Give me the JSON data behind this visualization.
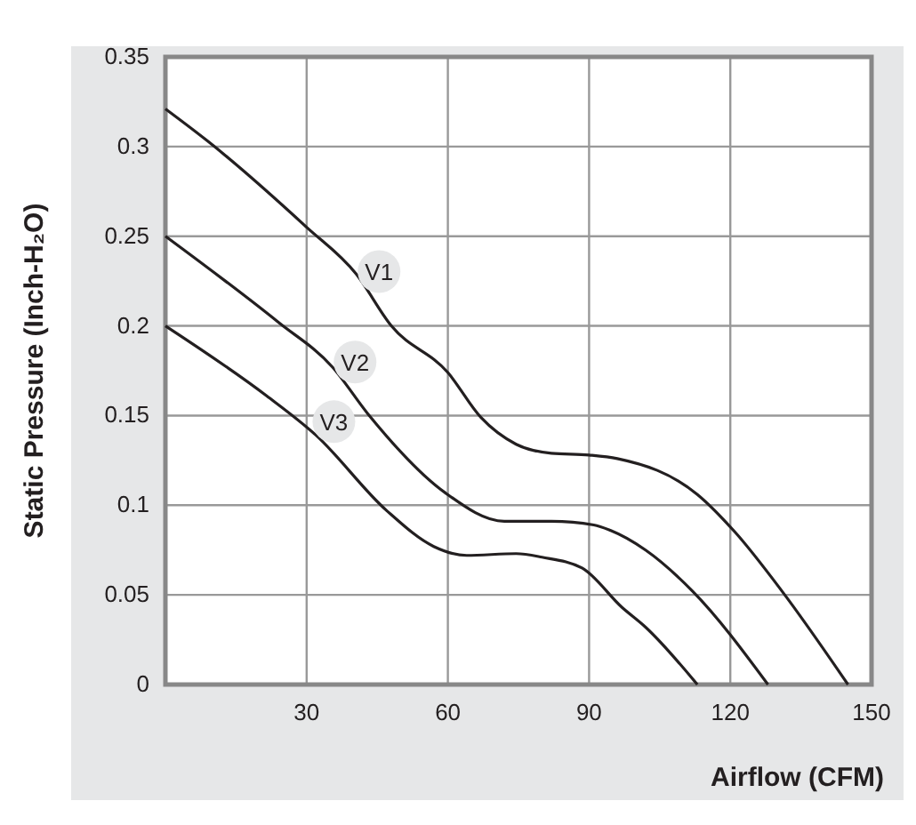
{
  "chart_data": {
    "type": "line",
    "xlabel": "Airflow (CFM)",
    "ylabel": "Static Pressure (Inch-H₂O)",
    "xlim": [
      0,
      150
    ],
    "ylim": [
      0,
      0.35
    ],
    "xticks": [
      30,
      60,
      90,
      120,
      150
    ],
    "yticks": [
      0,
      0.05,
      0.1,
      0.15,
      0.2,
      0.25,
      0.3,
      0.35
    ],
    "grid": true,
    "series": [
      {
        "name": "V1",
        "color": "#231f20",
        "x": [
          0,
          9,
          30,
          40.5,
          48,
          60,
          67,
          74.5,
          82,
          90,
          96,
          113,
          121,
          131,
          145
        ],
        "values": [
          0.321,
          0.303,
          0.255,
          0.229,
          0.2,
          0.174,
          0.149,
          0.134,
          0.129,
          0.128,
          0.126,
          0.106,
          0.085,
          0.052,
          0
        ]
      },
      {
        "name": "V2",
        "color": "#231f20",
        "x": [
          0,
          24,
          35.5,
          43,
          59.4,
          72,
          82,
          91,
          94.5,
          102,
          112,
          128
        ],
        "values": [
          0.25,
          0.202,
          0.177,
          0.151,
          0.107,
          0.091,
          0.091,
          0.089,
          0.086,
          0.075,
          0.052,
          0
        ]
      },
      {
        "name": "V3",
        "color": "#231f20",
        "x": [
          0,
          21.5,
          32,
          47,
          57,
          64,
          74.5,
          80,
          88.5,
          97,
          102,
          113
        ],
        "values": [
          0.2,
          0.161,
          0.139,
          0.097,
          0.077,
          0.072,
          0.073,
          0.071,
          0.065,
          0.043,
          0.032,
          0
        ]
      }
    ],
    "marker": "none",
    "line_style": "solid"
  }
}
